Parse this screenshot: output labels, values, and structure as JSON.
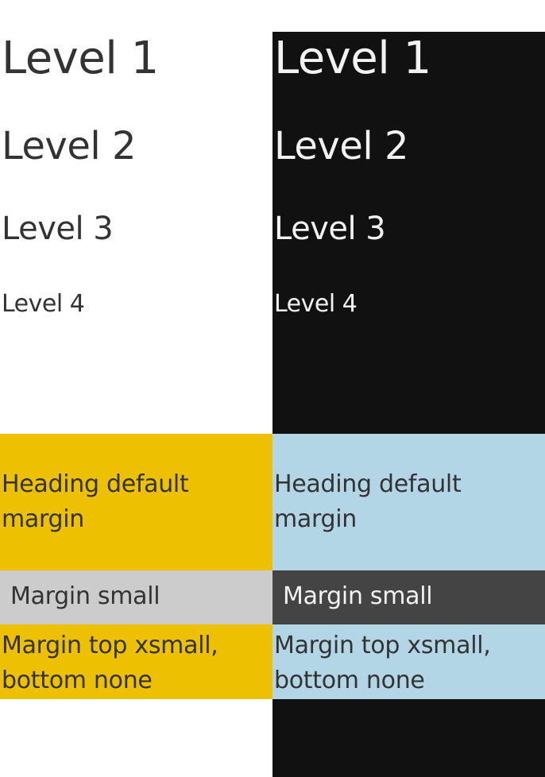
{
  "columns": {
    "light": {
      "headings": [
        "Level 1",
        "Level 2",
        "Level 3",
        "Level 4"
      ],
      "blocks": [
        "Heading default margin",
        "Margin small",
        "Margin top xsmall, bottom none"
      ]
    },
    "dark": {
      "headings": [
        "Level 1",
        "Level 2",
        "Level 3",
        "Level 4"
      ],
      "blocks": [
        "Heading default margin",
        "Margin small",
        "Margin top xsmall, bottom none"
      ]
    }
  },
  "colors": {
    "text_dark": "#333333",
    "text_light": "#f2f2f2",
    "dark_background": "#111111",
    "accent_yellow": "#edc001",
    "accent_lightblue": "#b3d6e6",
    "grey_light": "#cccccc",
    "grey_dark": "#444444"
  }
}
